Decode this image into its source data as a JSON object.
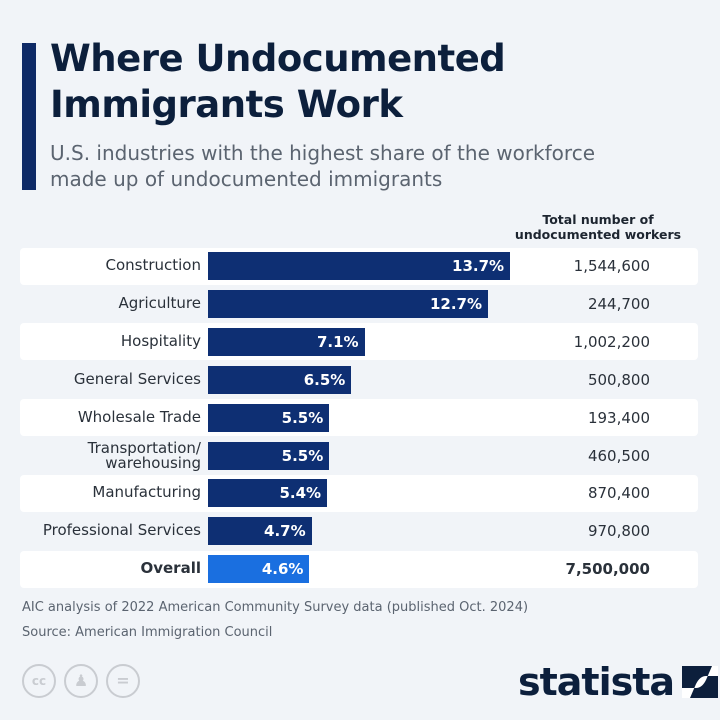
{
  "header": {
    "title_line1": "Where Undocumented",
    "title_line2": "Immigrants Work",
    "subtitle_line1": "U.S. industries with the highest share of the workforce",
    "subtitle_line2": "made up of undocumented immigrants"
  },
  "chart_data": {
    "type": "bar",
    "orientation": "horizontal",
    "categories": [
      "Construction",
      "Agriculture",
      "Hospitality",
      "General Services",
      "Wholesale Trade",
      "Transportation/ warehousing",
      "Manufacturing",
      "Professional Services",
      "Overall"
    ],
    "values": [
      13.7,
      12.7,
      7.1,
      6.5,
      5.5,
      5.5,
      5.4,
      4.7,
      4.6
    ],
    "value_labels": [
      "13.7%",
      "12.7%",
      "7.1%",
      "6.5%",
      "5.5%",
      "5.5%",
      "5.4%",
      "4.7%",
      "4.6%"
    ],
    "totals_header_line1": "Total number of",
    "totals_header_line2": "undocumented workers",
    "totals": [
      "1,544,600",
      "244,700",
      "1,002,200",
      "500,800",
      "193,400",
      "460,500",
      "870,400",
      "970,800",
      "7,500,000"
    ],
    "colors": {
      "bar": "#0e2f73",
      "overall": "#1a6fe0"
    }
  },
  "footer": {
    "note": "AIC analysis of 2022 American Community Survey data (published Oct. 2024)",
    "source": "Source: American Immigration Council",
    "license_icons": [
      "cc",
      "by",
      "nd"
    ],
    "logo": "statista"
  }
}
